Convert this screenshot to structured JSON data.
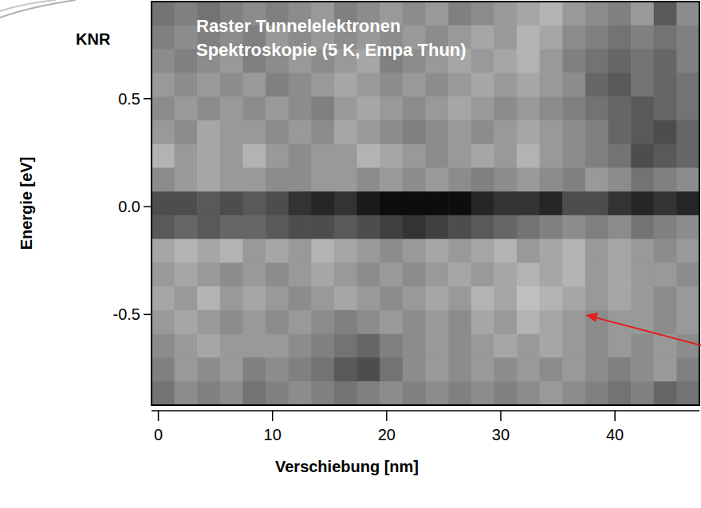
{
  "chart_data": {
    "type": "heatmap",
    "title": "KNR",
    "annotation": [
      "Raster Tunnelelektronen",
      "Spektroskopie (5 K, Empa Thun)"
    ],
    "x_label": "Verschiebung [nm]",
    "y_label": "Energie [eV]",
    "xlim": [
      -0.6,
      47.4
    ],
    "ylim": [
      -0.92,
      0.95
    ],
    "xticks": [
      0,
      10,
      20,
      30,
      40
    ],
    "yticks": [
      0.5,
      {
        "value": 0,
        "label": "0.0"
      },
      -0.5
    ],
    "x": [
      0.4,
      2.4,
      4.4,
      6.4,
      8.4,
      10.4,
      12.4,
      14.4,
      16.4,
      18.4,
      20.4,
      22.4,
      24.4,
      26.4,
      28.4,
      30.4,
      32.4,
      34.4,
      36.4,
      38.4,
      40.4,
      42.4,
      44.4,
      46.4
    ],
    "y": [
      0.895,
      0.785,
      0.675,
      0.565,
      0.455,
      0.345,
      0.235,
      0.125,
      0.015,
      -0.095,
      -0.205,
      -0.315,
      -0.425,
      -0.535,
      -0.645,
      -0.755,
      -0.865
    ],
    "cells": [
      [
        0.45,
        0.5,
        0.45,
        0.5,
        0.55,
        0.5,
        0.55,
        0.6,
        0.5,
        0.55,
        0.6,
        0.55,
        0.6,
        0.5,
        0.55,
        0.6,
        0.65,
        0.7,
        0.6,
        0.55,
        0.5,
        0.6,
        0.35,
        0.55
      ],
      [
        0.5,
        0.55,
        0.5,
        0.55,
        0.5,
        0.6,
        0.55,
        0.6,
        0.55,
        0.6,
        0.55,
        0.6,
        0.55,
        0.6,
        0.65,
        0.6,
        0.7,
        0.65,
        0.55,
        0.5,
        0.45,
        0.5,
        0.45,
        0.5
      ],
      [
        0.55,
        0.5,
        0.55,
        0.6,
        0.5,
        0.55,
        0.6,
        0.55,
        0.6,
        0.65,
        0.5,
        0.55,
        0.6,
        0.65,
        0.6,
        0.65,
        0.7,
        0.6,
        0.5,
        0.45,
        0.4,
        0.45,
        0.4,
        0.5
      ],
      [
        0.6,
        0.55,
        0.6,
        0.55,
        0.6,
        0.5,
        0.55,
        0.6,
        0.65,
        0.6,
        0.55,
        0.6,
        0.55,
        0.6,
        0.65,
        0.6,
        0.65,
        0.6,
        0.55,
        0.4,
        0.35,
        0.45,
        0.4,
        0.45
      ],
      [
        0.55,
        0.6,
        0.55,
        0.6,
        0.55,
        0.6,
        0.55,
        0.5,
        0.6,
        0.65,
        0.6,
        0.55,
        0.6,
        0.65,
        0.6,
        0.55,
        0.6,
        0.55,
        0.5,
        0.45,
        0.4,
        0.35,
        0.4,
        0.45
      ],
      [
        0.6,
        0.55,
        0.65,
        0.6,
        0.6,
        0.55,
        0.6,
        0.55,
        0.65,
        0.6,
        0.55,
        0.5,
        0.55,
        0.6,
        0.55,
        0.6,
        0.65,
        0.6,
        0.55,
        0.5,
        0.4,
        0.35,
        0.3,
        0.4
      ],
      [
        0.7,
        0.6,
        0.65,
        0.6,
        0.7,
        0.6,
        0.55,
        0.6,
        0.6,
        0.7,
        0.65,
        0.6,
        0.55,
        0.6,
        0.65,
        0.6,
        0.7,
        0.6,
        0.55,
        0.5,
        0.45,
        0.3,
        0.35,
        0.4
      ],
      [
        0.55,
        0.6,
        0.65,
        0.6,
        0.6,
        0.55,
        0.55,
        0.6,
        0.6,
        0.55,
        0.6,
        0.55,
        0.6,
        0.55,
        0.5,
        0.55,
        0.6,
        0.55,
        0.5,
        0.6,
        0.55,
        0.45,
        0.5,
        0.55
      ],
      [
        0.3,
        0.3,
        0.35,
        0.3,
        0.35,
        0.3,
        0.2,
        0.15,
        0.2,
        0.1,
        0.05,
        0.05,
        0.05,
        0.05,
        0.15,
        0.2,
        0.2,
        0.15,
        0.3,
        0.3,
        0.2,
        0.15,
        0.2,
        0.15
      ],
      [
        0.35,
        0.4,
        0.35,
        0.4,
        0.4,
        0.35,
        0.3,
        0.3,
        0.35,
        0.3,
        0.25,
        0.2,
        0.25,
        0.3,
        0.35,
        0.4,
        0.45,
        0.5,
        0.55,
        0.5,
        0.55,
        0.45,
        0.5,
        0.55
      ],
      [
        0.65,
        0.7,
        0.65,
        0.7,
        0.6,
        0.65,
        0.6,
        0.7,
        0.65,
        0.6,
        0.55,
        0.6,
        0.65,
        0.6,
        0.65,
        0.7,
        0.6,
        0.65,
        0.7,
        0.6,
        0.65,
        0.6,
        0.55,
        0.6
      ],
      [
        0.6,
        0.65,
        0.6,
        0.55,
        0.6,
        0.55,
        0.6,
        0.65,
        0.6,
        0.55,
        0.6,
        0.55,
        0.6,
        0.65,
        0.6,
        0.65,
        0.7,
        0.65,
        0.7,
        0.6,
        0.65,
        0.6,
        0.6,
        0.55
      ],
      [
        0.65,
        0.6,
        0.7,
        0.6,
        0.65,
        0.6,
        0.55,
        0.6,
        0.65,
        0.6,
        0.55,
        0.6,
        0.65,
        0.6,
        0.7,
        0.65,
        0.75,
        0.7,
        0.65,
        0.6,
        0.65,
        0.6,
        0.55,
        0.6
      ],
      [
        0.6,
        0.65,
        0.6,
        0.55,
        0.6,
        0.55,
        0.6,
        0.55,
        0.5,
        0.55,
        0.6,
        0.55,
        0.6,
        0.55,
        0.65,
        0.6,
        0.7,
        0.65,
        0.6,
        0.55,
        0.6,
        0.6,
        0.55,
        0.6
      ],
      [
        0.55,
        0.6,
        0.65,
        0.6,
        0.6,
        0.6,
        0.55,
        0.5,
        0.45,
        0.4,
        0.5,
        0.55,
        0.6,
        0.55,
        0.6,
        0.65,
        0.6,
        0.65,
        0.6,
        0.55,
        0.6,
        0.55,
        0.6,
        0.55
      ],
      [
        0.5,
        0.6,
        0.55,
        0.6,
        0.5,
        0.55,
        0.5,
        0.45,
        0.35,
        0.3,
        0.45,
        0.55,
        0.6,
        0.55,
        0.6,
        0.55,
        0.6,
        0.55,
        0.6,
        0.55,
        0.5,
        0.55,
        0.6,
        0.5
      ],
      [
        0.45,
        0.55,
        0.5,
        0.55,
        0.45,
        0.5,
        0.55,
        0.5,
        0.45,
        0.5,
        0.55,
        0.5,
        0.55,
        0.5,
        0.55,
        0.5,
        0.55,
        0.6,
        0.55,
        0.5,
        0.45,
        0.5,
        0.4,
        0.45
      ]
    ]
  }
}
